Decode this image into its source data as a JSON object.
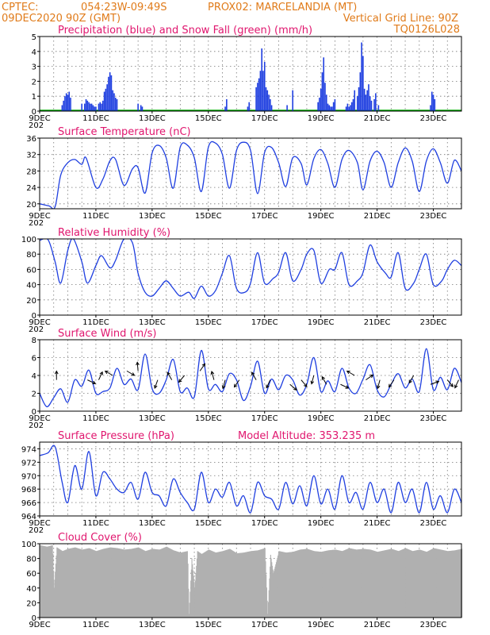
{
  "header": {
    "line1_left": "CPTEC:",
    "line1_coords": "054:23W-09:49S",
    "line1_location": "PROX02: MARCELANDIA (MT)",
    "line2_left": "09DEC2020 90Z (GMT)",
    "line2_right": "Vertical Grid Line: 90Z",
    "line3_right": "TQ0126L028"
  },
  "colors": {
    "header": "#e07b1a",
    "title": "#e0166e",
    "precip": "#1f3fe0",
    "snow": "#00aa00",
    "line": "#1f3fe0",
    "cloud": "#b0b0b0",
    "wind_arrow": "#000000"
  },
  "x_axis": {
    "tick_labels": [
      "9DEC",
      "11DEC",
      "13DEC",
      "15DEC",
      "17DEC",
      "19DEC",
      "21DEC",
      "23DEC"
    ],
    "year_fragment": "202",
    "x_start_day": 9,
    "x_end_day": 24
  },
  "chart_data": [
    {
      "id": "precip",
      "type": "bar",
      "title": "Precipitation (blue) and Snow Fall (green) (mm/h)",
      "ylim": [
        0,
        5
      ],
      "yticks": [
        0,
        1,
        2,
        3,
        4,
        5
      ],
      "series": [
        {
          "name": "Precipitation",
          "x": [
            9.8,
            9.85,
            9.9,
            9.95,
            10.0,
            10.05,
            10.1,
            10.5,
            10.6,
            10.65,
            10.7,
            10.75,
            10.8,
            10.85,
            10.9,
            10.95,
            11.0,
            11.1,
            11.15,
            11.2,
            11.25,
            11.3,
            11.35,
            11.4,
            11.45,
            11.5,
            11.55,
            11.6,
            11.65,
            11.7,
            11.75,
            12.5,
            12.6,
            12.65,
            15.6,
            15.65,
            16.4,
            16.45,
            16.7,
            16.75,
            16.8,
            16.85,
            16.9,
            16.95,
            17.0,
            17.05,
            17.1,
            17.15,
            17.2,
            17.25,
            17.8,
            18.0,
            18.9,
            18.95,
            19.0,
            19.05,
            19.1,
            19.15,
            19.2,
            19.25,
            19.3,
            19.35,
            19.4,
            19.45,
            19.5,
            19.9,
            19.95,
            20.0,
            20.05,
            20.1,
            20.15,
            20.2,
            20.3,
            20.35,
            20.4,
            20.45,
            20.5,
            20.55,
            20.6,
            20.65,
            20.7,
            20.75,
            20.8,
            20.9,
            20.95,
            21.05,
            22.9,
            22.95,
            23.0,
            23.05
          ],
          "values": [
            0.4,
            0.7,
            1.0,
            1.2,
            1.1,
            1.3,
            0.9,
            0.5,
            0.5,
            0.8,
            0.7,
            0.6,
            0.5,
            0.5,
            0.4,
            0.3,
            0.3,
            0.5,
            0.6,
            0.5,
            0.7,
            1.3,
            1.5,
            1.8,
            2.3,
            2.6,
            2.4,
            1.4,
            1.2,
            0.9,
            0.8,
            0.5,
            0.4,
            0.3,
            0.3,
            0.8,
            0.3,
            0.6,
            1.6,
            1.9,
            2.2,
            2.7,
            4.2,
            2.7,
            3.3,
            1.6,
            1.4,
            1.1,
            0.8,
            0.4,
            0.4,
            1.4,
            0.6,
            0.9,
            1.5,
            2.6,
            3.6,
            1.9,
            1.1,
            0.5,
            0.4,
            0.3,
            0.3,
            0.6,
            0.8,
            0.3,
            0.5,
            0.3,
            0.4,
            0.6,
            0.8,
            1.4,
            1.0,
            1.6,
            2.6,
            4.6,
            3.7,
            1.5,
            1.1,
            1.4,
            1.8,
            1.0,
            0.7,
            0.8,
            1.2,
            0.4,
            0.4,
            1.3,
            1.1,
            0.8
          ]
        },
        {
          "name": "Snow Fall",
          "x": [],
          "values": []
        }
      ]
    },
    {
      "id": "temperature",
      "type": "line",
      "title": "Surface Temperature (nC)",
      "ylim": [
        18.8,
        36
      ],
      "yticks": [
        20,
        24,
        28,
        32,
        36
      ],
      "x": [
        9.0,
        9.33,
        9.55,
        9.75,
        10.0,
        10.25,
        10.5,
        10.65,
        11.0,
        11.25,
        11.5,
        11.7,
        12.0,
        12.3,
        12.5,
        12.75,
        13.0,
        13.25,
        13.5,
        13.75,
        14.0,
        14.25,
        14.5,
        14.75,
        15.0,
        15.25,
        15.5,
        15.75,
        16.0,
        16.25,
        16.5,
        16.75,
        17.0,
        17.25,
        17.5,
        17.75,
        18.0,
        18.3,
        18.5,
        18.75,
        19.0,
        19.25,
        19.5,
        19.75,
        20.0,
        20.3,
        20.5,
        20.75,
        21.0,
        21.25,
        21.5,
        21.75,
        22.0,
        22.25,
        22.5,
        22.75,
        23.0,
        23.25,
        23.5,
        23.75,
        24.0
      ],
      "values": [
        20.0,
        19.5,
        19.3,
        27.0,
        30.0,
        30.8,
        29.6,
        31.2,
        24.0,
        26.0,
        30.5,
        30.8,
        24.5,
        28.5,
        28.8,
        22.6,
        32.4,
        34.2,
        31.2,
        23.8,
        33.8,
        34.3,
        31.2,
        23.0,
        33.8,
        34.8,
        32.0,
        23.8,
        33.0,
        35.0,
        33.0,
        22.5,
        32.5,
        33.7,
        30.0,
        24.2,
        31.2,
        29.8,
        24.6,
        31.0,
        33.2,
        29.8,
        24.0,
        30.8,
        33.0,
        30.0,
        23.4,
        30.4,
        32.8,
        30.0,
        24.0,
        30.0,
        33.6,
        30.4,
        23.0,
        30.4,
        33.4,
        30.0,
        25.0,
        30.6,
        28.0
      ]
    },
    {
      "id": "humidity",
      "type": "line",
      "title": "Relative Humidity (%)",
      "ylim": [
        0,
        100
      ],
      "yticks": [
        0,
        20,
        40,
        60,
        80,
        100
      ],
      "x": [
        9.0,
        9.3,
        9.55,
        9.75,
        10.0,
        10.2,
        10.5,
        10.7,
        11.0,
        11.2,
        11.5,
        11.7,
        12.0,
        12.3,
        12.5,
        12.75,
        13.0,
        13.25,
        13.5,
        13.75,
        14.0,
        14.3,
        14.5,
        14.75,
        15.0,
        15.25,
        15.5,
        15.75,
        16.0,
        16.3,
        16.5,
        16.75,
        17.0,
        17.3,
        17.5,
        17.75,
        18.0,
        18.3,
        18.5,
        18.75,
        19.0,
        19.3,
        19.5,
        19.75,
        20.0,
        20.3,
        20.5,
        20.75,
        21.0,
        21.3,
        21.5,
        21.75,
        22.0,
        22.3,
        22.5,
        22.75,
        23.0,
        23.3,
        23.5,
        23.75,
        24.0
      ],
      "values": [
        98,
        99,
        70,
        42,
        85,
        100,
        70,
        42,
        65,
        78,
        62,
        72,
        100,
        95,
        55,
        30,
        25,
        35,
        45,
        35,
        25,
        30,
        22,
        38,
        25,
        32,
        55,
        78,
        35,
        30,
        42,
        82,
        42,
        48,
        56,
        82,
        45,
        60,
        80,
        85,
        42,
        60,
        60,
        82,
        40,
        45,
        56,
        92,
        70,
        55,
        50,
        82,
        35,
        42,
        60,
        80,
        40,
        45,
        60,
        72,
        65
      ]
    },
    {
      "id": "wind",
      "type": "line",
      "title": "Surface Wind (m/s)",
      "ylim": [
        0,
        8
      ],
      "yticks": [
        0,
        2,
        4,
        6,
        8
      ],
      "x": [
        9.0,
        9.25,
        9.5,
        9.75,
        10.0,
        10.25,
        10.5,
        10.75,
        11.0,
        11.25,
        11.5,
        11.75,
        12.0,
        12.25,
        12.5,
        12.75,
        13.0,
        13.25,
        13.5,
        13.75,
        14.0,
        14.25,
        14.5,
        14.75,
        15.0,
        15.25,
        15.5,
        15.75,
        16.0,
        16.25,
        16.5,
        16.75,
        17.0,
        17.25,
        17.5,
        17.75,
        18.0,
        18.25,
        18.5,
        18.75,
        19.0,
        19.25,
        19.5,
        19.75,
        20.0,
        20.25,
        20.5,
        20.75,
        21.0,
        21.25,
        21.5,
        21.75,
        22.0,
        22.25,
        22.5,
        22.75,
        23.0,
        23.25,
        23.5,
        23.75,
        24.0
      ],
      "values": [
        2.0,
        0.5,
        1.5,
        2.5,
        1.0,
        3.5,
        2.8,
        4.6,
        2.0,
        2.2,
        2.6,
        4.8,
        3.0,
        3.6,
        2.4,
        6.4,
        2.5,
        2.0,
        3.5,
        5.8,
        2.2,
        2.6,
        1.6,
        6.8,
        2.5,
        3.0,
        2.2,
        4.2,
        3.5,
        1.2,
        2.8,
        5.6,
        2.0,
        3.6,
        2.4,
        4.0,
        3.5,
        1.8,
        3.0,
        6.0,
        2.2,
        3.4,
        2.2,
        4.8,
        2.6,
        2.0,
        3.6,
        5.2,
        2.4,
        1.6,
        3.0,
        4.2,
        2.6,
        3.6,
        2.2,
        7.0,
        2.4,
        3.8,
        2.4,
        4.8,
        3.2
      ],
      "arrows": [
        {
          "x": 9.6,
          "speed": 3.5,
          "dir_to": 0
        },
        {
          "x": 10.7,
          "speed": 3.5,
          "dir_to": 115
        },
        {
          "x": 11.1,
          "speed": 3.5,
          "dir_to": 25
        },
        {
          "x": 11.6,
          "speed": 4.0,
          "dir_to": 300
        },
        {
          "x": 12.1,
          "speed": 4.5,
          "dir_to": 120
        },
        {
          "x": 12.5,
          "speed": 4.5,
          "dir_to": 355
        },
        {
          "x": 13.2,
          "speed": 3.5,
          "dir_to": 200
        },
        {
          "x": 13.7,
          "speed": 3.5,
          "dir_to": 330
        },
        {
          "x": 14.15,
          "speed": 4.0,
          "dir_to": 220
        },
        {
          "x": 14.7,
          "speed": 4.5,
          "dir_to": 35
        },
        {
          "x": 15.2,
          "speed": 3.5,
          "dir_to": 345
        },
        {
          "x": 15.6,
          "speed": 3.5,
          "dir_to": 195
        },
        {
          "x": 16.1,
          "speed": 3.5,
          "dir_to": 215
        },
        {
          "x": 16.7,
          "speed": 3.5,
          "dir_to": 330
        },
        {
          "x": 17.2,
          "speed": 3.5,
          "dir_to": 205
        },
        {
          "x": 17.9,
          "speed": 3.0,
          "dir_to": 130
        },
        {
          "x": 18.3,
          "speed": 3.5,
          "dir_to": 140
        },
        {
          "x": 18.75,
          "speed": 4.0,
          "dir_to": 195
        },
        {
          "x": 19.2,
          "speed": 3.0,
          "dir_to": 330
        },
        {
          "x": 19.7,
          "speed": 3.0,
          "dir_to": 115
        },
        {
          "x": 20.2,
          "speed": 4.0,
          "dir_to": 300
        },
        {
          "x": 20.6,
          "speed": 3.5,
          "dir_to": 55
        },
        {
          "x": 21.1,
          "speed": 3.5,
          "dir_to": 195
        },
        {
          "x": 21.6,
          "speed": 3.5,
          "dir_to": 215
        },
        {
          "x": 22.3,
          "speed": 4.0,
          "dir_to": 210
        },
        {
          "x": 22.9,
          "speed": 3.0,
          "dir_to": 70
        },
        {
          "x": 23.5,
          "speed": 3.5,
          "dir_to": 140
        },
        {
          "x": 23.9,
          "speed": 3.5,
          "dir_to": 205
        }
      ]
    },
    {
      "id": "pressure",
      "type": "line",
      "title": "Surface Pressure (hPa)",
      "subtitle": "Model Altitude: 353.235 m",
      "ylim": [
        964,
        975
      ],
      "yticks": [
        964,
        966,
        968,
        970,
        972,
        974
      ],
      "x": [
        9.0,
        9.3,
        9.55,
        9.8,
        10.0,
        10.25,
        10.5,
        10.75,
        11.0,
        11.25,
        11.5,
        11.75,
        12.0,
        12.25,
        12.5,
        12.75,
        13.0,
        13.25,
        13.5,
        13.75,
        14.0,
        14.25,
        14.5,
        14.75,
        15.0,
        15.25,
        15.5,
        15.75,
        16.0,
        16.25,
        16.5,
        16.75,
        17.0,
        17.25,
        17.5,
        17.75,
        18.0,
        18.25,
        18.5,
        18.75,
        19.0,
        19.25,
        19.5,
        19.75,
        20.0,
        20.25,
        20.5,
        20.75,
        21.0,
        21.25,
        21.5,
        21.75,
        22.0,
        22.25,
        22.5,
        22.75,
        23.0,
        23.25,
        23.5,
        23.75,
        24.0
      ],
      "values": [
        973.0,
        973.4,
        974.3,
        969.0,
        966.0,
        971.5,
        968.0,
        973.6,
        967.0,
        970.5,
        969.5,
        968.0,
        967.5,
        969.0,
        966.5,
        970.5,
        967.5,
        967.0,
        965.5,
        969.5,
        967.5,
        966.0,
        965.0,
        970.5,
        966.0,
        968.0,
        966.8,
        969.0,
        965.5,
        967.0,
        964.5,
        969.0,
        967.0,
        966.5,
        965.0,
        969.0,
        965.8,
        968.5,
        965.5,
        970.0,
        965.8,
        968.0,
        965.0,
        970.0,
        966.0,
        967.5,
        965.0,
        969.0,
        966.0,
        968.0,
        964.5,
        969.0,
        966.0,
        968.0,
        964.5,
        969.0,
        965.0,
        967.0,
        964.5,
        968.0,
        966.0
      ]
    },
    {
      "id": "cloud",
      "type": "area",
      "title": "Cloud Cover (%)",
      "ylim": [
        0,
        100
      ],
      "yticks": [
        0,
        20,
        40,
        60,
        80,
        100
      ],
      "x": [
        9.0,
        9.25,
        9.45,
        9.5,
        9.6,
        9.8,
        10.0,
        10.25,
        10.5,
        10.75,
        11.0,
        11.25,
        11.5,
        11.75,
        12.0,
        12.25,
        12.5,
        12.75,
        13.0,
        13.25,
        13.5,
        13.75,
        14.0,
        14.25,
        14.3,
        14.4,
        14.5,
        14.6,
        14.75,
        15.0,
        15.25,
        15.5,
        15.75,
        16.0,
        16.25,
        16.5,
        16.75,
        17.0,
        17.1,
        17.2,
        17.3,
        17.5,
        17.75,
        18.0,
        18.25,
        18.5,
        18.75,
        19.0,
        19.25,
        19.5,
        19.75,
        20.0,
        20.25,
        20.5,
        20.75,
        21.0,
        21.25,
        21.5,
        21.75,
        22.0,
        22.25,
        22.5,
        22.75,
        23.0,
        23.25,
        23.5,
        23.75,
        24.0
      ],
      "values": [
        98,
        96,
        98,
        40,
        95,
        90,
        93,
        95,
        92,
        94,
        90,
        93,
        95,
        94,
        92,
        93,
        95,
        90,
        93,
        92,
        96,
        91,
        88,
        90,
        5,
        80,
        40,
        90,
        86,
        92,
        88,
        90,
        93,
        87,
        88,
        90,
        91,
        94,
        5,
        85,
        60,
        90,
        88,
        89,
        92,
        93,
        90,
        89,
        91,
        92,
        90,
        94,
        92,
        93,
        92,
        89,
        91,
        93,
        90,
        94,
        90,
        92,
        89,
        94,
        92,
        90,
        91,
        93
      ]
    }
  ]
}
